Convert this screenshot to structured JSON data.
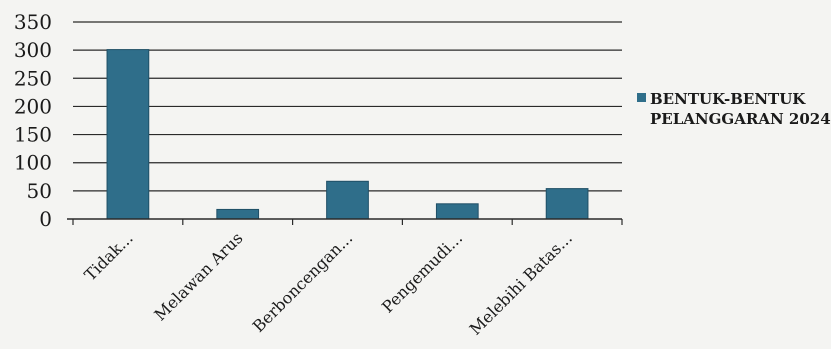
{
  "chart_data": {
    "type": "bar",
    "categories": [
      "Tidak...",
      "Melawan Arus",
      "Berboncengan...",
      "Pengemudi...",
      "Melebihi Batas..."
    ],
    "series": [
      {
        "name": "BENTUK-BENTUK PELANGGARAN 2024",
        "values": [
          301,
          17,
          67,
          27,
          54
        ]
      }
    ],
    "ylim": [
      0,
      350
    ],
    "yticks": [
      0,
      50,
      100,
      150,
      200,
      250,
      300,
      350
    ],
    "grid": true,
    "legend_position": "right",
    "colors": {
      "bar": "#2f6e8a",
      "bar_edge": "#1f4f66",
      "grid": "#2a2a2a",
      "axis": "#2a2a2a",
      "text": "#1a1a1a"
    },
    "legend": {
      "line1": "BENTUK-BENTUK",
      "line2": "PELANGGARAN 2024"
    }
  }
}
